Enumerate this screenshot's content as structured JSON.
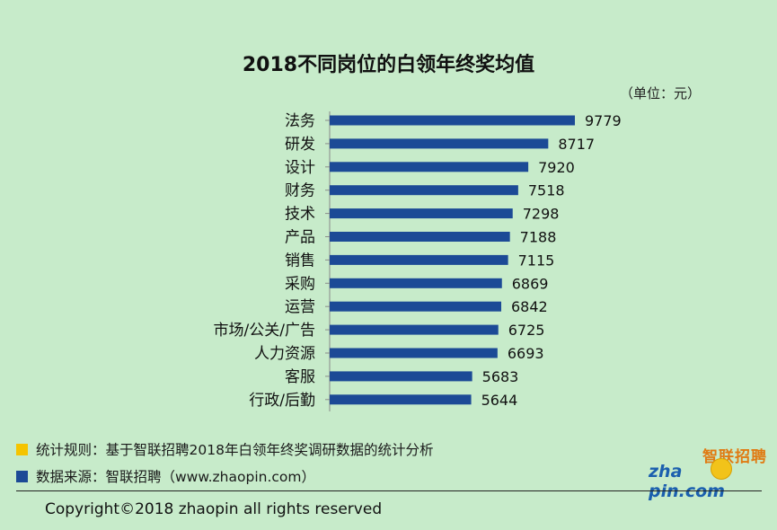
{
  "chart_data": {
    "type": "bar",
    "orientation": "horizontal",
    "title": "2018不同岗位的白领年终奖均值",
    "unit_label": "（单位：元）",
    "categories": [
      "法务",
      "研发",
      "设计",
      "财务",
      "技术",
      "产品",
      "销售",
      "采购",
      "运营",
      "市场/公关/广告",
      "人力资源",
      "客服",
      "行政/后勤"
    ],
    "values": [
      9779,
      8717,
      7920,
      7518,
      7298,
      7188,
      7115,
      6869,
      6842,
      6725,
      6693,
      5683,
      5644
    ],
    "xlim": [
      0,
      9779
    ],
    "bar_color": "#1c4a96",
    "grid": false
  },
  "legend": {
    "rule_text": "统计规则：基于智联招聘2018年白领年终奖调研数据的统计分析",
    "rule_color": "#f5c400",
    "source_text": "数据来源：智联招聘（www.zhaopin.com）",
    "source_color": "#1c4a96"
  },
  "logo": {
    "cn": "智联招聘",
    "en_prefix": "zha",
    "en_suffix": "pin.com"
  },
  "copyright": "Copyright©2018 zhaopin all rights reserved"
}
